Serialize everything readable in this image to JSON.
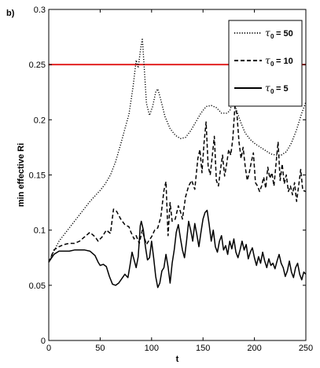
{
  "chart_data": {
    "type": "line",
    "panel_label": "b)",
    "xlabel": "t",
    "ylabel": "min effective Ri",
    "xlim": [
      0,
      250
    ],
    "ylim": [
      0,
      0.3
    ],
    "x_ticks": [
      0,
      50,
      100,
      150,
      200,
      250
    ],
    "x_tick_labels": [
      "0",
      "50",
      "100",
      "150",
      "200",
      "250"
    ],
    "y_ticks": [
      0,
      0.05,
      0.1,
      0.15,
      0.2,
      0.25,
      0.3
    ],
    "y_tick_labels": [
      "0",
      "0.05",
      "0.1",
      "0.15",
      "0.2",
      "0.25",
      "0.3"
    ],
    "grid": false,
    "legend_position": "top-right",
    "reference_line": {
      "y": 0.25,
      "color": "#e32222"
    },
    "series": [
      {
        "name": "τ₀ = 50",
        "legend_symbol": "τ",
        "legend_sub": "0",
        "legend_value": "= 50",
        "style": "dotted",
        "color": "#000000",
        "points": [
          [
            0,
            0.071
          ],
          [
            5,
            0.081
          ],
          [
            10,
            0.09
          ],
          [
            15,
            0.096
          ],
          [
            20,
            0.102
          ],
          [
            25,
            0.108
          ],
          [
            30,
            0.114
          ],
          [
            35,
            0.12
          ],
          [
            40,
            0.126
          ],
          [
            45,
            0.131
          ],
          [
            50,
            0.136
          ],
          [
            55,
            0.142
          ],
          [
            60,
            0.15
          ],
          [
            65,
            0.162
          ],
          [
            70,
            0.178
          ],
          [
            75,
            0.195
          ],
          [
            78,
            0.205
          ],
          [
            82,
            0.23
          ],
          [
            85,
            0.254
          ],
          [
            87,
            0.247
          ],
          [
            89,
            0.262
          ],
          [
            91,
            0.274
          ],
          [
            93,
            0.245
          ],
          [
            95,
            0.215
          ],
          [
            98,
            0.204
          ],
          [
            101,
            0.212
          ],
          [
            104,
            0.225
          ],
          [
            106,
            0.228
          ],
          [
            109,
            0.218
          ],
          [
            113,
            0.203
          ],
          [
            118,
            0.192
          ],
          [
            123,
            0.186
          ],
          [
            128,
            0.183
          ],
          [
            133,
            0.184
          ],
          [
            138,
            0.19
          ],
          [
            143,
            0.198
          ],
          [
            148,
            0.206
          ],
          [
            153,
            0.212
          ],
          [
            158,
            0.213
          ],
          [
            163,
            0.211
          ],
          [
            168,
            0.206
          ],
          [
            173,
            0.206
          ],
          [
            176,
            0.208
          ],
          [
            179,
            0.217
          ],
          [
            181,
            0.213
          ],
          [
            184,
            0.205
          ],
          [
            187,
            0.197
          ],
          [
            191,
            0.188
          ],
          [
            196,
            0.182
          ],
          [
            201,
            0.178
          ],
          [
            206,
            0.175
          ],
          [
            211,
            0.172
          ],
          [
            216,
            0.169
          ],
          [
            221,
            0.168
          ],
          [
            226,
            0.168
          ],
          [
            231,
            0.171
          ],
          [
            236,
            0.179
          ],
          [
            241,
            0.191
          ],
          [
            246,
            0.206
          ],
          [
            250,
            0.216
          ]
        ]
      },
      {
        "name": "τ₀ = 10",
        "legend_symbol": "τ",
        "legend_sub": "0",
        "legend_value": "= 10",
        "style": "dashed",
        "color": "#000000",
        "points": [
          [
            0,
            0.071
          ],
          [
            5,
            0.082
          ],
          [
            10,
            0.085
          ],
          [
            15,
            0.087
          ],
          [
            20,
            0.088
          ],
          [
            25,
            0.088
          ],
          [
            30,
            0.09
          ],
          [
            35,
            0.094
          ],
          [
            40,
            0.098
          ],
          [
            45,
            0.094
          ],
          [
            48,
            0.09
          ],
          [
            52,
            0.094
          ],
          [
            56,
            0.1
          ],
          [
            60,
            0.097
          ],
          [
            63,
            0.119
          ],
          [
            66,
            0.117
          ],
          [
            70,
            0.11
          ],
          [
            74,
            0.105
          ],
          [
            78,
            0.103
          ],
          [
            80,
            0.098
          ],
          [
            83,
            0.092
          ],
          [
            85,
            0.095
          ],
          [
            88,
            0.088
          ],
          [
            91,
            0.1
          ],
          [
            93,
            0.093
          ],
          [
            95,
            0.087
          ],
          [
            97,
            0.09
          ],
          [
            100,
            0.094
          ],
          [
            103,
            0.1
          ],
          [
            106,
            0.102
          ],
          [
            109,
            0.112
          ],
          [
            111,
            0.128
          ],
          [
            112,
            0.136
          ],
          [
            114,
            0.144
          ],
          [
            116,
            0.095
          ],
          [
            118,
            0.125
          ],
          [
            120,
            0.108
          ],
          [
            123,
            0.11
          ],
          [
            126,
            0.122
          ],
          [
            128,
            0.117
          ],
          [
            130,
            0.11
          ],
          [
            133,
            0.13
          ],
          [
            136,
            0.14
          ],
          [
            139,
            0.145
          ],
          [
            142,
            0.137
          ],
          [
            145,
            0.165
          ],
          [
            147,
            0.173
          ],
          [
            149,
            0.152
          ],
          [
            151,
            0.179
          ],
          [
            153,
            0.198
          ],
          [
            155,
            0.158
          ],
          [
            157,
            0.15
          ],
          [
            159,
            0.167
          ],
          [
            161,
            0.185
          ],
          [
            163,
            0.145
          ],
          [
            165,
            0.14
          ],
          [
            167,
            0.155
          ],
          [
            169,
            0.168
          ],
          [
            171,
            0.149
          ],
          [
            173,
            0.16
          ],
          [
            175,
            0.173
          ],
          [
            177,
            0.168
          ],
          [
            179,
            0.183
          ],
          [
            181,
            0.212
          ],
          [
            183,
            0.205
          ],
          [
            185,
            0.18
          ],
          [
            187,
            0.165
          ],
          [
            189,
            0.175
          ],
          [
            191,
            0.158
          ],
          [
            193,
            0.145
          ],
          [
            195,
            0.152
          ],
          [
            197,
            0.162
          ],
          [
            199,
            0.17
          ],
          [
            201,
            0.143
          ],
          [
            203,
            0.14
          ],
          [
            205,
            0.135
          ],
          [
            207,
            0.14
          ],
          [
            209,
            0.148
          ],
          [
            211,
            0.138
          ],
          [
            213,
            0.157
          ],
          [
            215,
            0.147
          ],
          [
            217,
            0.152
          ],
          [
            219,
            0.14
          ],
          [
            221,
            0.16
          ],
          [
            223,
            0.18
          ],
          [
            225,
            0.145
          ],
          [
            227,
            0.16
          ],
          [
            229,
            0.142
          ],
          [
            231,
            0.15
          ],
          [
            233,
            0.135
          ],
          [
            235,
            0.14
          ],
          [
            237,
            0.132
          ],
          [
            239,
            0.143
          ],
          [
            241,
            0.126
          ],
          [
            243,
            0.14
          ],
          [
            245,
            0.155
          ],
          [
            247,
            0.136
          ],
          [
            250,
            0.135
          ]
        ]
      },
      {
        "name": "τ₀ = 5",
        "legend_symbol": "τ",
        "legend_sub": "0",
        "legend_value": "= 5",
        "style": "solid",
        "color": "#000000",
        "points": [
          [
            0,
            0.071
          ],
          [
            5,
            0.078
          ],
          [
            10,
            0.081
          ],
          [
            15,
            0.081
          ],
          [
            20,
            0.081
          ],
          [
            25,
            0.082
          ],
          [
            30,
            0.082
          ],
          [
            35,
            0.082
          ],
          [
            40,
            0.081
          ],
          [
            45,
            0.077
          ],
          [
            48,
            0.071
          ],
          [
            50,
            0.068
          ],
          [
            53,
            0.069
          ],
          [
            56,
            0.067
          ],
          [
            59,
            0.058
          ],
          [
            62,
            0.051
          ],
          [
            65,
            0.05
          ],
          [
            68,
            0.052
          ],
          [
            71,
            0.056
          ],
          [
            74,
            0.06
          ],
          [
            77,
            0.057
          ],
          [
            79,
            0.068
          ],
          [
            81,
            0.08
          ],
          [
            83,
            0.073
          ],
          [
            85,
            0.066
          ],
          [
            87,
            0.076
          ],
          [
            89,
            0.104
          ],
          [
            90,
            0.108
          ],
          [
            92,
            0.1
          ],
          [
            94,
            0.085
          ],
          [
            96,
            0.073
          ],
          [
            98,
            0.075
          ],
          [
            100,
            0.09
          ],
          [
            102,
            0.075
          ],
          [
            104,
            0.058
          ],
          [
            106,
            0.048
          ],
          [
            108,
            0.052
          ],
          [
            110,
            0.063
          ],
          [
            112,
            0.066
          ],
          [
            114,
            0.078
          ],
          [
            116,
            0.067
          ],
          [
            118,
            0.052
          ],
          [
            120,
            0.07
          ],
          [
            122,
            0.082
          ],
          [
            124,
            0.098
          ],
          [
            126,
            0.105
          ],
          [
            128,
            0.093
          ],
          [
            130,
            0.082
          ],
          [
            132,
            0.075
          ],
          [
            134,
            0.09
          ],
          [
            136,
            0.108
          ],
          [
            138,
            0.1
          ],
          [
            140,
            0.09
          ],
          [
            142,
            0.106
          ],
          [
            144,
            0.096
          ],
          [
            146,
            0.085
          ],
          [
            148,
            0.098
          ],
          [
            150,
            0.11
          ],
          [
            152,
            0.116
          ],
          [
            154,
            0.118
          ],
          [
            156,
            0.105
          ],
          [
            158,
            0.09
          ],
          [
            160,
            0.1
          ],
          [
            162,
            0.085
          ],
          [
            164,
            0.08
          ],
          [
            166,
            0.09
          ],
          [
            168,
            0.095
          ],
          [
            170,
            0.082
          ],
          [
            172,
            0.086
          ],
          [
            174,
            0.078
          ],
          [
            176,
            0.09
          ],
          [
            178,
            0.083
          ],
          [
            180,
            0.092
          ],
          [
            182,
            0.08
          ],
          [
            184,
            0.075
          ],
          [
            186,
            0.082
          ],
          [
            188,
            0.09
          ],
          [
            190,
            0.082
          ],
          [
            192,
            0.087
          ],
          [
            194,
            0.074
          ],
          [
            196,
            0.08
          ],
          [
            198,
            0.084
          ],
          [
            200,
            0.075
          ],
          [
            202,
            0.068
          ],
          [
            204,
            0.076
          ],
          [
            206,
            0.07
          ],
          [
            208,
            0.08
          ],
          [
            210,
            0.072
          ],
          [
            212,
            0.066
          ],
          [
            214,
            0.074
          ],
          [
            216,
            0.068
          ],
          [
            218,
            0.07
          ],
          [
            220,
            0.065
          ],
          [
            222,
            0.072
          ],
          [
            224,
            0.078
          ],
          [
            226,
            0.07
          ],
          [
            228,
            0.066
          ],
          [
            230,
            0.058
          ],
          [
            232,
            0.063
          ],
          [
            234,
            0.072
          ],
          [
            236,
            0.062
          ],
          [
            238,
            0.057
          ],
          [
            240,
            0.066
          ],
          [
            242,
            0.07
          ],
          [
            244,
            0.06
          ],
          [
            246,
            0.055
          ],
          [
            248,
            0.062
          ],
          [
            250,
            0.06
          ]
        ]
      }
    ]
  }
}
